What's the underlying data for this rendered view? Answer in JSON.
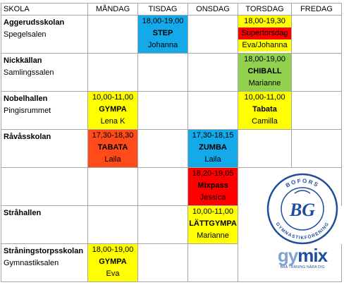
{
  "header": {
    "venue": "SKOLA",
    "days": [
      "MÅNDAG",
      "TISDAG",
      "ONSDAG",
      "TORSDAG",
      "FREDAG"
    ]
  },
  "rows": [
    {
      "school": "Aggerudsskolan",
      "hall": "Spegelsalen"
    },
    {
      "school": "Nickkällan",
      "hall": "Samlingssalen"
    },
    {
      "school": "Nobelhallen",
      "hall": "Pingisrummet"
    },
    {
      "school": "Råvåsskolan",
      "hall": ""
    },
    {
      "school": "",
      "hall": ""
    },
    {
      "school": "Stråhallen",
      "hall": ""
    },
    {
      "school": "Stråningstorpsskolan",
      "hall": "Gymnastiksalen"
    }
  ],
  "activities": {
    "step": {
      "time": "18,00-19,00",
      "name": "STEP",
      "leader": "Johanna",
      "color": "#14a9e8"
    },
    "supertorsdag": {
      "time": "18,00-19,30",
      "name": "Supertorsdag",
      "leader": "Eva/Johanna",
      "color": "#ff0000"
    },
    "chiball": {
      "time": "18,00-19,00",
      "name": "CHIBALL",
      "leader": "Marianne",
      "color": "#92d050"
    },
    "gympa_mon": {
      "time": "10,00-11,00",
      "name": "GYMPA",
      "leader": "Lena K",
      "color": "#ffff00"
    },
    "tabata_thu": {
      "time": "10,00-11,00",
      "name": "Tabata",
      "leader": "Camilla",
      "color": "#ffff00"
    },
    "tabata_mon": {
      "time": "17,30-18,30",
      "name": "TABATA",
      "leader": "Laila",
      "color": "#ff4a1a"
    },
    "zumba": {
      "time": "17,30-18,15",
      "name": "ZUMBA",
      "leader": "Laila",
      "color": "#14a9e8"
    },
    "mixpass": {
      "time": "18,20-19,05",
      "name": "Mixpass",
      "leader": "Jessica",
      "color": "#ff0000"
    },
    "lattgympa": {
      "time": "10,00-11,00",
      "name": "LÄTTGYMPA",
      "leader": "Marianne",
      "color": "#ffff00"
    },
    "gympa_eva": {
      "time": "18,00-19,00",
      "name": "GYMPA",
      "leader": "Eva",
      "color": "#ffff00"
    }
  },
  "logo": {
    "ring_top": "BOFORS",
    "ring_bottom": "GYMNASTIKFÖRENING",
    "monogram": "BG",
    "brand_gy": "gy",
    "brand_mix": "mix",
    "tagline": "BRA TRÄNING NÄRA DIG"
  }
}
